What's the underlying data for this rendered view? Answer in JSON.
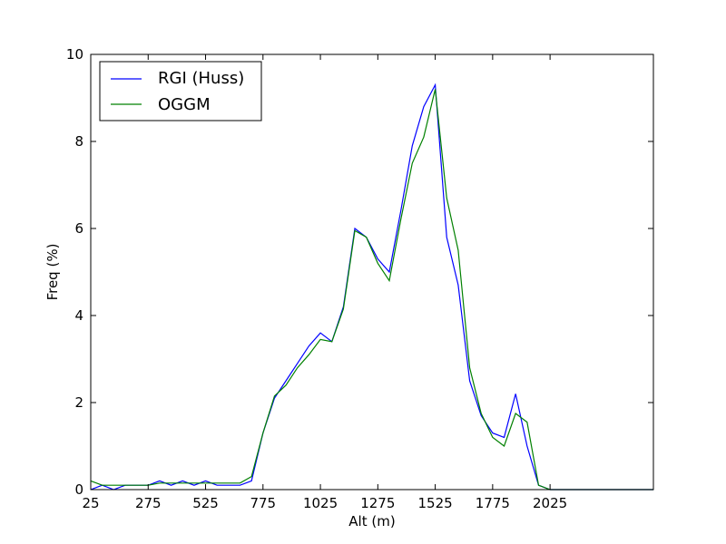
{
  "chart_data": {
    "type": "line",
    "xlabel": "Alt (m)",
    "ylabel": "Freq (%)",
    "xlim": [
      25,
      2475
    ],
    "ylim": [
      0,
      10
    ],
    "x_ticks": [
      "25",
      "275",
      "525",
      "775",
      "1025",
      "1275",
      "1525",
      "1775",
      "2025"
    ],
    "y_ticks": [
      "0",
      "2",
      "4",
      "6",
      "8",
      "10"
    ],
    "grid": false,
    "legend_position": "top-left",
    "x": [
      25,
      75,
      125,
      175,
      225,
      275,
      325,
      375,
      425,
      475,
      525,
      575,
      625,
      675,
      725,
      775,
      825,
      875,
      925,
      975,
      1025,
      1075,
      1125,
      1175,
      1225,
      1275,
      1325,
      1375,
      1425,
      1475,
      1525,
      1575,
      1625,
      1675,
      1725,
      1775,
      1825,
      1875,
      1925,
      1975,
      2025,
      2075,
      2125,
      2175,
      2225,
      2275,
      2325,
      2375,
      2425,
      2475
    ],
    "series": [
      {
        "name": "RGI (Huss)",
        "color": "#0000ff",
        "values": [
          0.0,
          0.1,
          0.0,
          0.1,
          0.1,
          0.1,
          0.2,
          0.1,
          0.2,
          0.1,
          0.2,
          0.1,
          0.1,
          0.1,
          0.2,
          1.3,
          2.1,
          2.5,
          2.9,
          3.3,
          3.6,
          3.4,
          4.2,
          6.0,
          5.8,
          5.3,
          5.0,
          6.4,
          7.9,
          8.8,
          9.3,
          5.8,
          4.7,
          2.5,
          1.7,
          1.3,
          1.2,
          2.2,
          1.0,
          0.1,
          0.0,
          0.0,
          0.0,
          0.0,
          0.0,
          0.0,
          0.0,
          0.0,
          0.0,
          0.0
        ]
      },
      {
        "name": "OGGM",
        "color": "#008000",
        "values": [
          0.2,
          0.1,
          0.1,
          0.1,
          0.1,
          0.1,
          0.15,
          0.15,
          0.15,
          0.15,
          0.15,
          0.15,
          0.15,
          0.15,
          0.3,
          1.3,
          2.15,
          2.4,
          2.8,
          3.1,
          3.45,
          3.4,
          4.15,
          5.95,
          5.8,
          5.2,
          4.8,
          6.2,
          7.5,
          8.1,
          9.2,
          6.7,
          5.5,
          2.8,
          1.75,
          1.2,
          1.0,
          1.75,
          1.55,
          0.1,
          0.0,
          0.0,
          0.0,
          0.0,
          0.0,
          0.0,
          0.0,
          0.0,
          0.0,
          0.0
        ]
      }
    ]
  }
}
